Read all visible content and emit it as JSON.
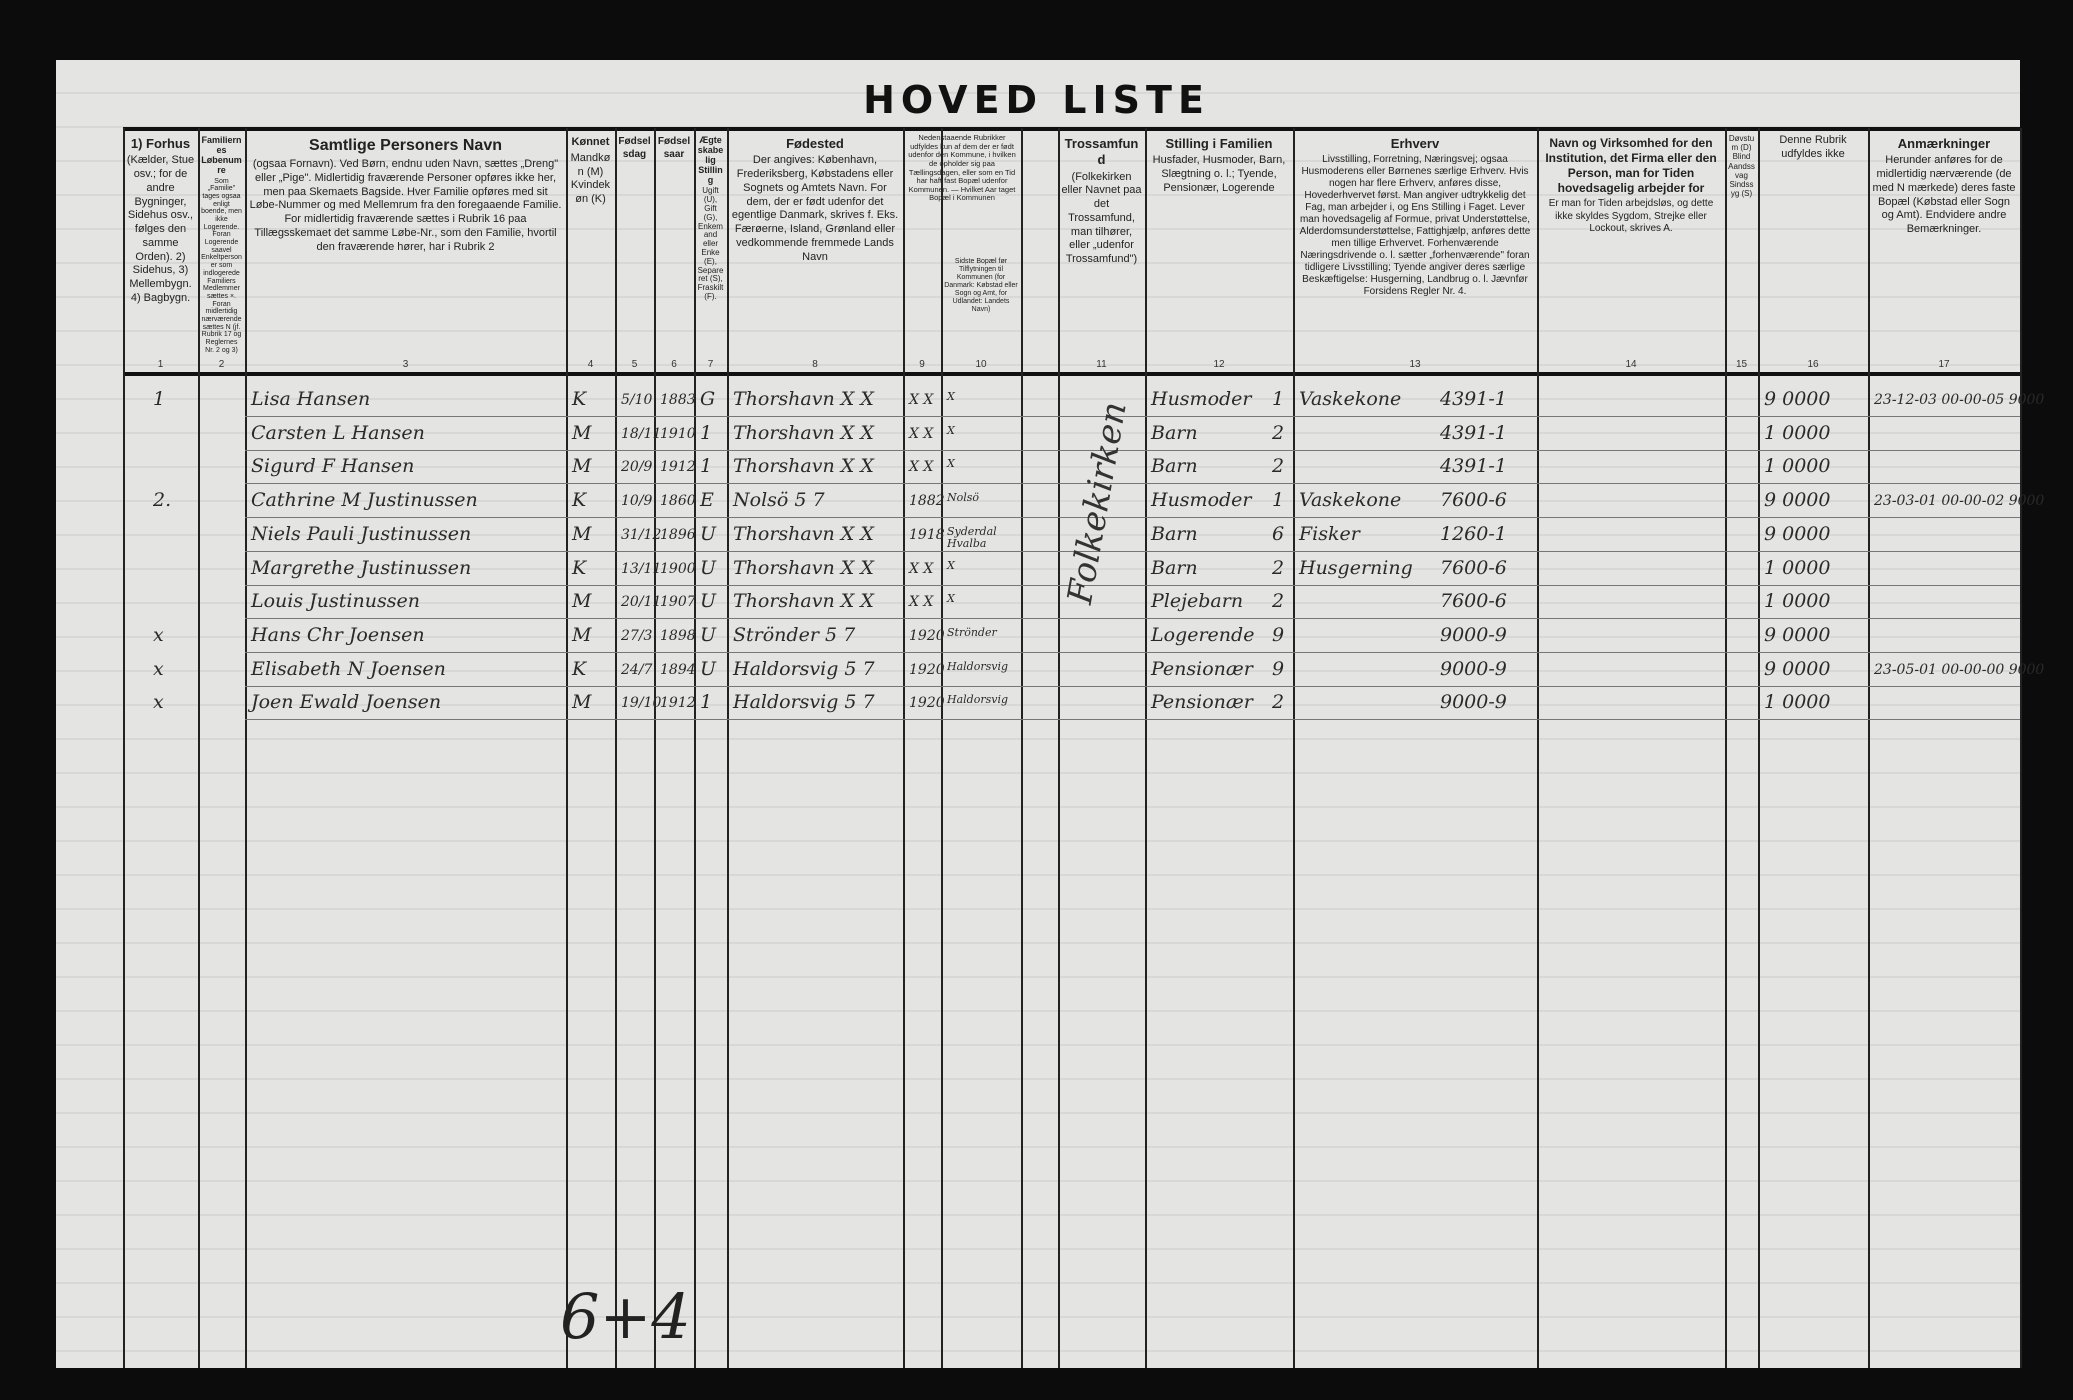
{
  "title": "HOVED LISTE",
  "headers": [
    {
      "num": "1",
      "title": "1) Forhus",
      "text": "(Kælder, Stue osv.; for de andre Bygninger, Sidehus osv., følges den samme Orden). 2) Sidehus, 3) Mellembygn. 4) Bagbygn."
    },
    {
      "num": "2",
      "title": "Familiernes Løbenumre",
      "text": "Som „Familie\" tages ogsaa enligt boende, men ikke Logerende. Foran Logerende saavel Enkeltpersoner som indlogerede Familiers Medlemmer sættes ×. Foran midlertidig nærværende sættes N (jf. Rubrik 17 og Reglernes Nr. 2 og 3)"
    },
    {
      "num": "3",
      "title": "Samtlige Personers Navn",
      "text": "(ogsaa Fornavn). Ved Børn, endnu uden Navn, sættes „Dreng\" eller „Pige\". Midlertidig fraværende Personer opføres ikke her, men paa Skemaets Bagside. Hver Familie opføres med sit Løbe-Nummer og med Mellemrum fra den foregaaende Familie. For midlertidig fraværende sættes i Rubrik 16 paa Tillægsskemaet det samme Løbe-Nr., som den Familie, hvortil den fraværende hører, har i Rubrik 2"
    },
    {
      "num": "4",
      "title": "Kønnet",
      "text": "Mandkøn (M) Kvindekøn (K)"
    },
    {
      "num": "5",
      "title": "Fødselsdag",
      "text": ""
    },
    {
      "num": "6",
      "title": "Fødselsaar",
      "text": ""
    },
    {
      "num": "7",
      "title": "Ægteskabelig Stilling",
      "text": "Ugift (U), Gift (G), Enkemand eller Enke (E), Separeret (S), Fraskilt (F)."
    },
    {
      "num": "8",
      "title": "Fødested",
      "text": "Der angives: København, Frederiksberg, Købstadens eller Sognets og Amtets Navn. For dem, der er født udenfor det egentlige Danmark, skrives f. Eks. Færøerne, Island, Grønland eller vedkommende fremmede Lands Navn"
    },
    {
      "num": "9",
      "title": "",
      "text": "Nedenstaaende Rubrikker udfyldes kun af dem der er født udenfor den Kommune, i hvilken de opholder sig paa Tællingsdagen, eller som en Tid har haft fast Bopæl udenfor Kommunen. — Hvilket Aar taget Bopæl i Kommunen"
    },
    {
      "num": "10",
      "title": "",
      "text": "Sidste Bopæl før Tilflytningen til Kommunen (for Danmark: Købstad eller Sogn og Amt, for Udlandet: Landets Navn)"
    },
    {
      "num": "11",
      "title": "Trossamfund",
      "text": "(Folkekirken eller Navnet paa det Trossamfund, man tilhører, eller „udenfor Trossamfund\")"
    },
    {
      "num": "12",
      "title": "Stilling i Familien",
      "text": "Husfader, Husmoder, Barn, Slægtning o. l.; Tyende, Pensionær, Logerende"
    },
    {
      "num": "13",
      "title": "Erhverv",
      "text": "Livsstilling, Forretning, Næringsvej; ogsaa Husmoderens eller Børnenes særlige Erhverv. Hvis nogen har flere Erhverv, anføres disse, Hovederhvervet først. Man angiver udtrykkelig det Fag, man arbejder i, og Ens Stilling i Faget. Lever man hovedsagelig af Formue, privat Understøttelse, Alderdomsunderstøttelse, Fattighjælp, anføres dette men tillige Erhvervet. Forhenværende Næringsdrivende o. l. sætter „forhenværende\" foran tidligere Livsstilling; Tyende angiver deres særlige Beskæftigelse: Husgerning, Landbrug o. l. Jævnfør Forsidens Regler Nr. 4."
    },
    {
      "num": "14",
      "title": "Navn og Virksomhed for den Institution, det Firma eller den Person, man for Tiden hovedsagelig arbejder for",
      "text": "Er man for Tiden arbejdsløs, og dette ikke skyldes Sygdom, Strejke eller Lockout, skrives A."
    },
    {
      "num": "15",
      "title": "",
      "text": "Døvstum (D) Blind Aandssvag Sindssyg (S)"
    },
    {
      "num": "16",
      "title": "",
      "text": "Denne Rubrik udfyldes ikke"
    },
    {
      "num": "17",
      "title": "Anmærkninger",
      "text": "Herunder anføres for de midlertidig nærværende (de med N mærkede) deres faste Bopæl (Købstad eller Sogn og Amt). Endvidere andre Bemærkninger."
    }
  ],
  "religion": "Folkekirken",
  "rows": [
    {
      "fam": "1",
      "name": "Lisa Hansen",
      "sex": "K",
      "day": "5/10",
      "year": "1883",
      "civil": "G",
      "birthplace": "Thorshavn X X",
      "c9": "X X",
      "c10": "X",
      "position": "Husmoder",
      "poscode": "1",
      "occupation": "Vaskekone",
      "occcode": "4391-1",
      "c16": "9 0000",
      "c17": "23-12-03 00-00-05 9000"
    },
    {
      "fam": "",
      "name": "Carsten L Hansen",
      "sex": "M",
      "day": "18/11",
      "year": "1910",
      "civil": "1",
      "birthplace": "Thorshavn X X",
      "c9": "X X",
      "c10": "X",
      "position": "Barn",
      "poscode": "2",
      "occupation": "",
      "occcode": "4391-1",
      "c16": "1 0000",
      "c17": ""
    },
    {
      "fam": "",
      "name": "Sigurd F Hansen",
      "sex": "M",
      "day": "20/9",
      "year": "1912",
      "civil": "1",
      "birthplace": "Thorshavn X X",
      "c9": "X X",
      "c10": "X",
      "position": "Barn",
      "poscode": "2",
      "occupation": "",
      "occcode": "4391-1",
      "c16": "1 0000",
      "c17": ""
    },
    {
      "fam": "2.",
      "name": "Cathrine M Justinussen",
      "sex": "K",
      "day": "10/9",
      "year": "1860",
      "civil": "E",
      "birthplace": "Nolsö 5 7",
      "c9": "1882",
      "c10": "Nolsö",
      "position": "Husmoder",
      "poscode": "1",
      "occupation": "Vaskekone",
      "occcode": "7600-6",
      "c16": "9 0000",
      "c17": "23-03-01 00-00-02 9000"
    },
    {
      "fam": "",
      "name": "Niels Pauli Justinussen",
      "sex": "M",
      "day": "31/12",
      "year": "1896",
      "civil": "U",
      "birthplace": "Thorshavn X X",
      "c9": "1918",
      "c10": "Syderdal Hvalba",
      "position": "Barn",
      "poscode": "6",
      "occupation": "Fisker",
      "occcode": "1260-1",
      "c16": "9 0000",
      "c17": ""
    },
    {
      "fam": "",
      "name": "Margrethe Justinussen",
      "sex": "K",
      "day": "13/11",
      "year": "1900",
      "civil": "U",
      "birthplace": "Thorshavn X X",
      "c9": "X X",
      "c10": "X",
      "position": "Barn",
      "poscode": "2",
      "occupation": "Husgerning",
      "occcode": "7600-6",
      "c16": "1 0000",
      "c17": ""
    },
    {
      "fam": "",
      "name": "Louis Justinussen",
      "sex": "M",
      "day": "20/11",
      "year": "1907",
      "civil": "U",
      "birthplace": "Thorshavn X X",
      "c9": "X X",
      "c10": "X",
      "position": "Plejebarn",
      "poscode": "2",
      "occupation": "",
      "occcode": "7600-6",
      "c16": "1 0000",
      "c17": ""
    },
    {
      "fam": "x",
      "name": "Hans Chr Joensen",
      "sex": "M",
      "day": "27/3",
      "year": "1898",
      "civil": "U",
      "birthplace": "Strönder 5 7",
      "c9": "1920",
      "c10": "Strönder",
      "position": "Logerende",
      "poscode": "9",
      "occupation": "",
      "occcode": "9000-9",
      "c16": "9 0000",
      "c17": ""
    },
    {
      "fam": "x",
      "name": "Elisabeth N Joensen",
      "sex": "K",
      "day": "24/7",
      "year": "1894",
      "civil": "U",
      "birthplace": "Haldorsvig 5 7",
      "c9": "1920",
      "c10": "Haldorsvig",
      "position": "Pensionær",
      "poscode": "9",
      "occupation": "",
      "occcode": "9000-9",
      "c16": "9 0000",
      "c17": "23-05-01 00-00-00 9000"
    },
    {
      "fam": "x",
      "name": "Joen Ewald Joensen",
      "sex": "M",
      "day": "19/10",
      "year": "1912",
      "civil": "1",
      "birthplace": "Haldorsvig 5 7",
      "c9": "1920",
      "c10": "Haldorsvig",
      "position": "Pensionær",
      "poscode": "2",
      "occupation": "",
      "occcode": "9000-9",
      "c16": "1 0000",
      "c17": ""
    }
  ],
  "bottom_note": "6+4"
}
